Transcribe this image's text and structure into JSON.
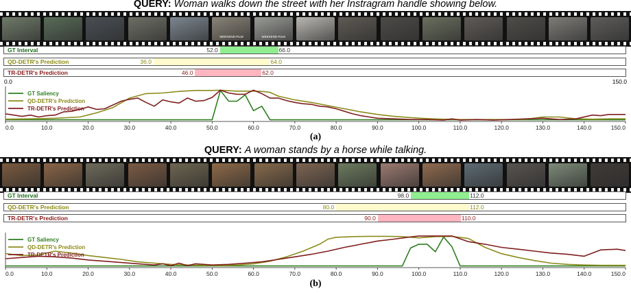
{
  "panels": [
    {
      "query_label": "QUERY:",
      "query_text": "Woman walks down the street with her Instragram handle showing below.",
      "frame_colors": [
        "#6f7a68",
        "#586c58",
        "#4a4f55",
        "#6d6f66",
        "#7c8690",
        "#8a8478",
        "#9a9c97",
        "#b9b7b2",
        "#5e5a55",
        "#4d4b48",
        "#6a6f5e",
        "#5f5b57",
        "#4f4c49",
        "#7d7c78",
        "#5e5c5b"
      ],
      "frame_captions": [
        "",
        "",
        "",
        "",
        "",
        "WEEKEND-FILM",
        "WEEKEND-FILM",
        "",
        "",
        "",
        "",
        "",
        "",
        "",
        ""
      ],
      "bars": [
        {
          "label": "GT Interval",
          "color": "#1a6e1a",
          "fill": "#90ee90",
          "start": 52.0,
          "end": 66.0,
          "start_label": "52.0",
          "end_label": "66.0",
          "num_color": "#333333"
        },
        {
          "label": "QD-DETR's Prediction",
          "color": "#8a8a10",
          "fill": "#fffacd",
          "start": 36.0,
          "end": 64.0,
          "start_label": "36.0",
          "end_label": "64.0",
          "num_color": "#8a8a10"
        },
        {
          "label": "TR-DETR's Prediction",
          "color": "#8b1a1a",
          "fill": "#ffb6c1",
          "start": 46.0,
          "end": 62.0,
          "start_label": "46.0",
          "end_label": "62.0",
          "num_color": "#8b1a1a"
        }
      ],
      "range_labels": {
        "min": "0.0",
        "max": "150.0"
      },
      "caption": "(a)",
      "chart_data": {
        "type": "line",
        "xlim": [
          0,
          150
        ],
        "ylim": [
          0,
          1
        ],
        "xticks": [
          "0.0",
          "10.0",
          "20.0",
          "30.0",
          "40.0",
          "50.0",
          "60.0",
          "70.0",
          "80.0",
          "90.0",
          "100.0",
          "110.0",
          "120.0",
          "130.0",
          "140.0",
          "150.0"
        ],
        "legend_position": "top-left",
        "series": [
          {
            "name": "GT Saliency",
            "color": "#2e7d1f",
            "x": [
              0,
              50,
              52,
              54,
              56,
              58,
              60,
              62,
              64,
              66,
              68,
              150
            ],
            "y": [
              0.03,
              0.03,
              0.96,
              0.62,
              0.62,
              0.82,
              0.32,
              0.46,
              0.03,
              0.03,
              0.03,
              0.03
            ]
          },
          {
            "name": "QD-DETR's Prediction",
            "color": "#8b8b1b",
            "x": [
              0,
              6,
              12,
              18,
              22,
              26,
              30,
              34,
              38,
              42,
              46,
              50,
              52,
              56,
              60,
              62,
              64,
              66,
              70,
              74,
              78,
              82,
              86,
              90,
              94,
              98,
              102,
              106,
              110,
              114,
              118,
              122,
              126,
              130,
              134,
              138,
              142,
              146,
              150
            ],
            "y": [
              0.05,
              0.06,
              0.08,
              0.12,
              0.25,
              0.42,
              0.72,
              0.86,
              0.88,
              0.93,
              0.96,
              0.96,
              0.97,
              0.94,
              0.94,
              0.93,
              0.9,
              0.78,
              0.66,
              0.58,
              0.48,
              0.38,
              0.28,
              0.2,
              0.14,
              0.1,
              0.07,
              0.05,
              0.04,
              0.04,
              0.04,
              0.04,
              0.05,
              0.12,
              0.12,
              0.06,
              0.05,
              0.06,
              0.06
            ]
          },
          {
            "name": "TR-DETR's Prediction",
            "color": "#7f1d1d",
            "x": [
              0,
              2,
              4,
              6,
              8,
              10,
              12,
              14,
              16,
              18,
              20,
              22,
              24,
              26,
              28,
              30,
              32,
              34,
              36,
              38,
              40,
              42,
              44,
              46,
              48,
              50,
              52,
              54,
              56,
              58,
              60,
              62,
              64,
              66,
              68,
              70,
              72,
              74,
              76,
              78,
              80,
              82,
              84,
              86,
              88,
              90,
              94,
              98,
              102,
              106,
              108,
              110,
              114,
              118,
              122,
              126,
              130,
              134,
              138,
              142,
              144,
              146,
              148,
              150
            ],
            "y": [
              0.22,
              0.18,
              0.14,
              0.18,
              0.12,
              0.16,
              0.18,
              0.28,
              0.3,
              0.36,
              0.44,
              0.36,
              0.38,
              0.5,
              0.62,
              0.68,
              0.72,
              0.58,
              0.46,
              0.66,
              0.6,
              0.56,
              0.72,
              0.62,
              0.64,
              0.74,
              0.97,
              0.88,
              0.84,
              0.84,
              0.97,
              0.86,
              0.72,
              0.72,
              0.64,
              0.58,
              0.54,
              0.52,
              0.46,
              0.44,
              0.38,
              0.3,
              0.22,
              0.16,
              0.12,
              0.08,
              0.06,
              0.04,
              0.04,
              0.02,
              0.06,
              0.02,
              0.04,
              0.02,
              0.04,
              0.06,
              0.08,
              0.04,
              0.06,
              0.18,
              0.16,
              0.2,
              0.2,
              0.2
            ]
          }
        ]
      }
    },
    {
      "query_label": "QUERY:",
      "query_text": "A woman stands by a horse while talking.",
      "frame_colors": [
        "#7a5a3e",
        "#8a6547",
        "#6e6a5a",
        "#7b5b43",
        "#6d6550",
        "#8e6a48",
        "#86694b",
        "#7d6552",
        "#6c7a5e",
        "#9b7a70",
        "#8f6a4e",
        "#5d6b73",
        "#585450",
        "#7d8a78",
        "#3f3a37"
      ],
      "frame_captions": [
        "",
        "",
        "",
        "",
        "",
        "",
        "",
        "",
        "",
        "",
        "",
        "",
        "",
        "",
        ""
      ],
      "bars": [
        {
          "label": "GT Interval",
          "color": "#1a6e1a",
          "fill": "#90ee90",
          "start": 98.0,
          "end": 112.0,
          "start_label": "98.0",
          "end_label": "112.0",
          "num_color": "#333333"
        },
        {
          "label": "QD-DETR's Prediction",
          "color": "#8a8a10",
          "fill": "#fffacd",
          "start": 80.0,
          "end": 112.0,
          "start_label": "80.0",
          "end_label": "112.0",
          "num_color": "#8a8a10"
        },
        {
          "label": "TR-DETR's Prediction",
          "color": "#8b1a1a",
          "fill": "#ffb6c1",
          "start": 90.0,
          "end": 110.0,
          "start_label": "90.0",
          "end_label": "110.0",
          "num_color": "#8b1a1a"
        }
      ],
      "range_labels": {
        "min": "",
        "max": ""
      },
      "caption": "(b)",
      "chart_data": {
        "type": "line",
        "xlim": [
          0,
          150
        ],
        "ylim": [
          0,
          1
        ],
        "xticks": [
          "0.0",
          "10.0",
          "20.0",
          "30.0",
          "40.0",
          "50.0",
          "60.0",
          "70.0",
          "80.0",
          "90.0",
          "100.0",
          "110.0",
          "120.0",
          "130.0",
          "140.0",
          "150.0"
        ],
        "legend_position": "top-left",
        "series": [
          {
            "name": "GT Saliency",
            "color": "#2e7d1f",
            "x": [
              0,
              96,
              98,
              100,
              102,
              104,
              106,
              108,
              110,
              112,
              150
            ],
            "y": [
              0.03,
              0.03,
              0.6,
              0.72,
              0.72,
              0.48,
              0.95,
              0.64,
              0.03,
              0.03,
              0.03
            ]
          },
          {
            "name": "QD-DETR's Prediction",
            "color": "#8b8b1b",
            "x": [
              0,
              4,
              8,
              12,
              16,
              20,
              24,
              28,
              32,
              36,
              40,
              44,
              48,
              52,
              56,
              60,
              64,
              68,
              72,
              76,
              78,
              80,
              84,
              88,
              92,
              96,
              100,
              104,
              108,
              112,
              116,
              120,
              124,
              128,
              132,
              136,
              140,
              144,
              148,
              150
            ],
            "y": [
              0.42,
              0.36,
              0.38,
              0.5,
              0.44,
              0.36,
              0.3,
              0.24,
              0.16,
              0.12,
              0.08,
              0.06,
              0.05,
              0.04,
              0.06,
              0.1,
              0.18,
              0.32,
              0.5,
              0.72,
              0.88,
              0.94,
              0.96,
              0.97,
              0.97,
              0.96,
              0.92,
              0.96,
              0.97,
              0.9,
              0.62,
              0.42,
              0.3,
              0.2,
              0.12,
              0.08,
              0.06,
              0.05,
              0.05,
              0.05
            ]
          },
          {
            "name": "TR-DETR's Prediction",
            "color": "#7f1d1d",
            "x": [
              0,
              4,
              8,
              12,
              16,
              20,
              24,
              28,
              32,
              36,
              38,
              40,
              42,
              44,
              46,
              50,
              54,
              58,
              62,
              66,
              70,
              74,
              78,
              82,
              86,
              90,
              94,
              98,
              100,
              104,
              108,
              112,
              116,
              120,
              124,
              128,
              132,
              136,
              140,
              144,
              148,
              150
            ],
            "y": [
              0.26,
              0.3,
              0.34,
              0.32,
              0.28,
              0.22,
              0.18,
              0.14,
              0.1,
              0.06,
              0.1,
              0.04,
              0.12,
              0.04,
              0.1,
              0.06,
              0.08,
              0.12,
              0.16,
              0.24,
              0.32,
              0.4,
              0.5,
              0.62,
              0.72,
              0.82,
              0.88,
              0.95,
              0.98,
              0.98,
              0.98,
              0.8,
              0.72,
              0.62,
              0.56,
              0.5,
              0.44,
              0.4,
              0.34,
              0.54,
              0.56,
              0.52
            ]
          }
        ]
      }
    }
  ]
}
